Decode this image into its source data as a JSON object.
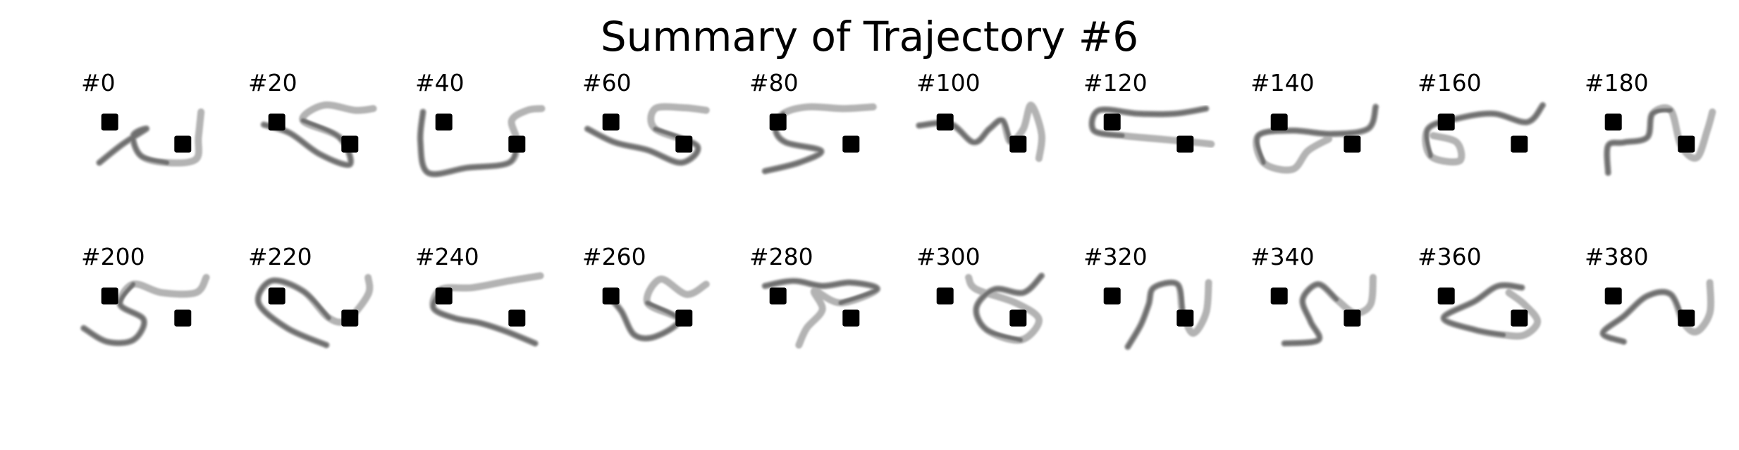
{
  "title": "Summary of Trajectory #6",
  "colors": {
    "rope_light": "#b3b3b3",
    "rope_dark": "#5a5a5a",
    "marker": "#000000",
    "background": "#ffffff"
  },
  "panels": [
    {
      "label": "#0",
      "rope": [
        [
          0.14,
          0.8
        ],
        [
          0.32,
          0.58
        ],
        [
          0.5,
          0.4
        ],
        [
          0.4,
          0.48
        ],
        [
          0.46,
          0.72
        ],
        [
          0.66,
          0.8
        ],
        [
          0.88,
          0.76
        ],
        [
          0.9,
          0.5
        ],
        [
          0.92,
          0.2
        ]
      ]
    },
    {
      "label": "#20",
      "rope": [
        [
          0.12,
          0.35
        ],
        [
          0.32,
          0.45
        ],
        [
          0.55,
          0.7
        ],
        [
          0.78,
          0.82
        ],
        [
          0.7,
          0.5
        ],
        [
          0.42,
          0.3
        ],
        [
          0.58,
          0.12
        ],
        [
          0.82,
          0.18
        ],
        [
          0.96,
          0.16
        ]
      ]
    },
    {
      "label": "#40",
      "rope": [
        [
          0.06,
          0.2
        ],
        [
          0.04,
          0.55
        ],
        [
          0.1,
          0.92
        ],
        [
          0.4,
          0.86
        ],
        [
          0.72,
          0.8
        ],
        [
          0.78,
          0.55
        ],
        [
          0.74,
          0.3
        ],
        [
          0.86,
          0.18
        ],
        [
          0.97,
          0.16
        ]
      ]
    },
    {
      "label": "#60",
      "rope": [
        [
          0.04,
          0.4
        ],
        [
          0.25,
          0.56
        ],
        [
          0.5,
          0.65
        ],
        [
          0.76,
          0.8
        ],
        [
          0.88,
          0.6
        ],
        [
          0.56,
          0.4
        ],
        [
          0.56,
          0.16
        ],
        [
          0.78,
          0.15
        ],
        [
          0.95,
          0.18
        ]
      ]
    },
    {
      "label": "#80",
      "rope": [
        [
          0.12,
          0.9
        ],
        [
          0.38,
          0.8
        ],
        [
          0.55,
          0.66
        ],
        [
          0.28,
          0.56
        ],
        [
          0.2,
          0.4
        ],
        [
          0.26,
          0.22
        ],
        [
          0.45,
          0.14
        ],
        [
          0.72,
          0.16
        ],
        [
          0.95,
          0.14
        ]
      ]
    },
    {
      "label": "#100",
      "rope": [
        [
          0.02,
          0.36
        ],
        [
          0.26,
          0.34
        ],
        [
          0.44,
          0.56
        ],
        [
          0.56,
          0.4
        ],
        [
          0.66,
          0.3
        ],
        [
          0.72,
          0.55
        ],
        [
          0.82,
          0.4
        ],
        [
          0.88,
          0.12
        ],
        [
          0.96,
          0.46
        ],
        [
          0.94,
          0.75
        ]
      ]
    },
    {
      "label": "#120",
      "rope": [
        [
          0.94,
          0.16
        ],
        [
          0.7,
          0.22
        ],
        [
          0.42,
          0.22
        ],
        [
          0.12,
          0.18
        ],
        [
          0.08,
          0.42
        ],
        [
          0.3,
          0.48
        ],
        [
          0.58,
          0.52
        ],
        [
          0.86,
          0.56
        ],
        [
          0.98,
          0.58
        ]
      ]
    },
    {
      "label": "#140",
      "rope": [
        [
          0.96,
          0.14
        ],
        [
          0.9,
          0.4
        ],
        [
          0.62,
          0.46
        ],
        [
          0.32,
          0.42
        ],
        [
          0.06,
          0.48
        ],
        [
          0.1,
          0.8
        ],
        [
          0.32,
          0.88
        ],
        [
          0.44,
          0.66
        ],
        [
          0.6,
          0.52
        ]
      ]
    },
    {
      "label": "#160",
      "rope": [
        [
          0.96,
          0.12
        ],
        [
          0.84,
          0.32
        ],
        [
          0.58,
          0.22
        ],
        [
          0.3,
          0.28
        ],
        [
          0.08,
          0.4
        ],
        [
          0.1,
          0.72
        ],
        [
          0.32,
          0.78
        ],
        [
          0.3,
          0.56
        ],
        [
          0.12,
          0.48
        ]
      ]
    },
    {
      "label": "#180",
      "rope": [
        [
          0.18,
          0.92
        ],
        [
          0.18,
          0.6
        ],
        [
          0.3,
          0.56
        ],
        [
          0.48,
          0.5
        ],
        [
          0.52,
          0.22
        ],
        [
          0.66,
          0.18
        ],
        [
          0.74,
          0.6
        ],
        [
          0.86,
          0.74
        ],
        [
          0.94,
          0.42
        ],
        [
          0.98,
          0.2
        ]
      ]
    },
    {
      "label": "#200",
      "rope": [
        [
          0.02,
          0.7
        ],
        [
          0.2,
          0.86
        ],
        [
          0.4,
          0.84
        ],
        [
          0.48,
          0.6
        ],
        [
          0.3,
          0.42
        ],
        [
          0.4,
          0.18
        ],
        [
          0.62,
          0.28
        ],
        [
          0.88,
          0.28
        ],
        [
          0.96,
          0.1
        ]
      ]
    },
    {
      "label": "#220",
      "rope": [
        [
          0.6,
          0.9
        ],
        [
          0.3,
          0.7
        ],
        [
          0.08,
          0.4
        ],
        [
          0.18,
          0.14
        ],
        [
          0.42,
          0.26
        ],
        [
          0.62,
          0.58
        ],
        [
          0.76,
          0.6
        ],
        [
          0.92,
          0.3
        ],
        [
          0.92,
          0.1
        ]
      ]
    },
    {
      "label": "#240",
      "rope": [
        [
          0.92,
          0.88
        ],
        [
          0.7,
          0.74
        ],
        [
          0.5,
          0.64
        ],
        [
          0.3,
          0.58
        ],
        [
          0.14,
          0.46
        ],
        [
          0.2,
          0.24
        ],
        [
          0.44,
          0.22
        ],
        [
          0.72,
          0.14
        ],
        [
          0.96,
          0.08
        ]
      ]
    },
    {
      "label": "#260",
      "rope": [
        [
          0.2,
          0.32
        ],
        [
          0.3,
          0.5
        ],
        [
          0.4,
          0.78
        ],
        [
          0.56,
          0.8
        ],
        [
          0.74,
          0.6
        ],
        [
          0.5,
          0.4
        ],
        [
          0.6,
          0.12
        ],
        [
          0.8,
          0.3
        ],
        [
          0.95,
          0.18
        ]
      ]
    },
    {
      "label": "#280",
      "rope": [
        [
          0.12,
          0.2
        ],
        [
          0.34,
          0.14
        ],
        [
          0.56,
          0.2
        ],
        [
          0.78,
          0.16
        ],
        [
          0.98,
          0.24
        ],
        [
          0.7,
          0.4
        ],
        [
          0.5,
          0.26
        ],
        [
          0.56,
          0.48
        ],
        [
          0.44,
          0.7
        ],
        [
          0.38,
          0.9
        ]
      ]
    },
    {
      "label": "#300",
      "rope": [
        [
          0.96,
          0.08
        ],
        [
          0.82,
          0.28
        ],
        [
          0.6,
          0.24
        ],
        [
          0.46,
          0.46
        ],
        [
          0.54,
          0.72
        ],
        [
          0.8,
          0.84
        ],
        [
          0.94,
          0.6
        ],
        [
          0.76,
          0.4
        ],
        [
          0.46,
          0.24
        ],
        [
          0.4,
          0.1
        ]
      ]
    },
    {
      "label": "#320",
      "rope": [
        [
          0.34,
          0.92
        ],
        [
          0.44,
          0.66
        ],
        [
          0.5,
          0.42
        ],
        [
          0.54,
          0.22
        ],
        [
          0.72,
          0.18
        ],
        [
          0.76,
          0.5
        ],
        [
          0.84,
          0.76
        ],
        [
          0.94,
          0.52
        ],
        [
          0.96,
          0.16
        ]
      ]
    },
    {
      "label": "#340",
      "rope": [
        [
          0.26,
          0.88
        ],
        [
          0.52,
          0.84
        ],
        [
          0.46,
          0.62
        ],
        [
          0.4,
          0.36
        ],
        [
          0.52,
          0.18
        ],
        [
          0.66,
          0.36
        ],
        [
          0.8,
          0.52
        ],
        [
          0.92,
          0.42
        ],
        [
          0.94,
          0.1
        ]
      ]
    },
    {
      "label": "#360",
      "rope": [
        [
          0.8,
          0.22
        ],
        [
          0.62,
          0.2
        ],
        [
          0.44,
          0.38
        ],
        [
          0.2,
          0.58
        ],
        [
          0.44,
          0.72
        ],
        [
          0.66,
          0.78
        ],
        [
          0.82,
          0.78
        ],
        [
          0.92,
          0.62
        ],
        [
          0.82,
          0.42
        ],
        [
          0.7,
          0.28
        ]
      ]
    },
    {
      "label": "#380",
      "rope": [
        [
          0.3,
          0.86
        ],
        [
          0.14,
          0.76
        ],
        [
          0.3,
          0.56
        ],
        [
          0.48,
          0.32
        ],
        [
          0.66,
          0.3
        ],
        [
          0.76,
          0.64
        ],
        [
          0.86,
          0.74
        ],
        [
          0.96,
          0.52
        ],
        [
          0.96,
          0.16
        ]
      ]
    }
  ]
}
